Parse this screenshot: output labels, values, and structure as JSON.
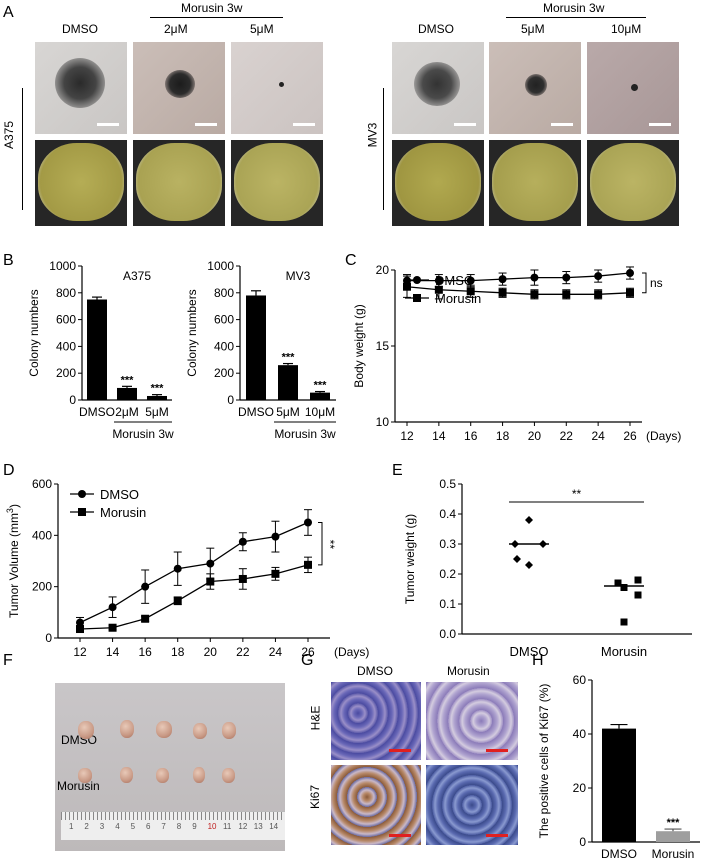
{
  "panels": {
    "A": {
      "letter": "A",
      "groups": [
        {
          "cell_line": "A375",
          "treatment": "Morusin 3w",
          "columns": [
            "DMSO",
            "2μM",
            "5μM"
          ]
        },
        {
          "cell_line": "MV3",
          "treatment": "Morusin 3w",
          "columns": [
            "DMSO",
            "5μM",
            "10μM"
          ]
        }
      ]
    },
    "B": {
      "letter": "B"
    },
    "C": {
      "letter": "C"
    },
    "D": {
      "letter": "D"
    },
    "E": {
      "letter": "E"
    },
    "F": {
      "letter": "F",
      "rows": [
        "DMSO",
        "Morusin"
      ],
      "ruler_numbers": [
        "1",
        "2",
        "3",
        "4",
        "5",
        "6",
        "7",
        "8",
        "9",
        "10",
        "11",
        "12",
        "13",
        "14"
      ]
    },
    "G": {
      "letter": "G",
      "columns": [
        "DMSO",
        "Morusin"
      ],
      "rows": [
        "H&E",
        "Ki67"
      ]
    },
    "H": {
      "letter": "H"
    }
  },
  "chart_data": [
    {
      "id": "B1",
      "type": "bar",
      "title": "A375",
      "categories": [
        "DMSO",
        "2μM",
        "5μM"
      ],
      "values": [
        750,
        90,
        30
      ],
      "errors": [
        18,
        12,
        10
      ],
      "significance": [
        "",
        "***",
        "***"
      ],
      "ylabel": "Colony numbers",
      "ylim": [
        0,
        1000
      ],
      "yticks": [
        0,
        200,
        400,
        600,
        800,
        1000
      ],
      "group_label": "Morusin 3w"
    },
    {
      "id": "B2",
      "type": "bar",
      "title": "MV3",
      "categories": [
        "DMSO",
        "5μM",
        "10μM"
      ],
      "values": [
        780,
        260,
        55
      ],
      "errors": [
        35,
        12,
        8
      ],
      "significance": [
        "",
        "***",
        "***"
      ],
      "ylabel": "Colony numbers",
      "ylim": [
        0,
        1000
      ],
      "yticks": [
        0,
        200,
        400,
        600,
        800,
        1000
      ],
      "group_label": "Morusin 3w"
    },
    {
      "id": "C",
      "type": "line",
      "x": [
        12,
        14,
        16,
        18,
        20,
        22,
        24,
        26
      ],
      "xunit": "(Days)",
      "series": [
        {
          "name": "DMSO",
          "marker": "circle",
          "values": [
            19.3,
            19.3,
            19.3,
            19.4,
            19.5,
            19.5,
            19.6,
            19.8
          ],
          "errors": [
            0.4,
            0.4,
            0.4,
            0.4,
            0.5,
            0.4,
            0.4,
            0.4
          ]
        },
        {
          "name": "Morusin",
          "marker": "square",
          "values": [
            18.9,
            18.7,
            18.6,
            18.5,
            18.4,
            18.4,
            18.4,
            18.5
          ],
          "errors": [
            0.7,
            0.6,
            0.4,
            0.3,
            0.3,
            0.3,
            0.3,
            0.3
          ]
        }
      ],
      "ylabel": "Body weight (g)",
      "ylim": [
        10,
        20
      ],
      "yticks": [
        10,
        15,
        20
      ],
      "annotation": "ns",
      "legend": "top-left"
    },
    {
      "id": "D",
      "type": "line",
      "x": [
        12,
        14,
        16,
        18,
        20,
        22,
        24,
        26
      ],
      "xunit": "(Days)",
      "series": [
        {
          "name": "DMSO",
          "marker": "circle",
          "values": [
            60,
            120,
            200,
            270,
            290,
            375,
            395,
            450
          ],
          "errors": [
            20,
            40,
            65,
            65,
            60,
            35,
            60,
            50
          ]
        },
        {
          "name": "Morusin",
          "marker": "square",
          "values": [
            35,
            40,
            75,
            145,
            220,
            230,
            250,
            285
          ],
          "errors": [
            10,
            8,
            10,
            15,
            30,
            40,
            25,
            30
          ]
        }
      ],
      "ylabel": "Tumor Volume (mm",
      "ylabel_sup": "3",
      "ylabel_end": ")",
      "ylim": [
        0,
        600
      ],
      "yticks": [
        0,
        200,
        400,
        600
      ],
      "annotation": "**",
      "legend": "top-left"
    },
    {
      "id": "E",
      "type": "scatter",
      "categories": [
        "DMSO",
        "Morusin"
      ],
      "points": [
        [
          0.38,
          0.3,
          0.3,
          0.25,
          0.23
        ],
        [
          0.18,
          0.17,
          0.155,
          0.13,
          0.04
        ]
      ],
      "means": [
        0.3,
        0.16
      ],
      "ylabel": "Tumor weight (g)",
      "ylim": [
        0,
        0.5
      ],
      "yticks": [
        "0.0",
        "0.1",
        "0.2",
        "0.3",
        "0.4",
        "0.5"
      ],
      "annotation": "**"
    },
    {
      "id": "H",
      "type": "bar",
      "categories": [
        "DMSO",
        "Morusin"
      ],
      "values": [
        42,
        4
      ],
      "errors": [
        1.5,
        0.8
      ],
      "colors": [
        "#000000",
        "#9e9e9e"
      ],
      "significance": [
        "",
        "***"
      ],
      "ylabel": "The positive cells of Ki67 (%)",
      "ylim": [
        0,
        60
      ],
      "yticks": [
        0,
        20,
        40,
        60
      ]
    }
  ]
}
